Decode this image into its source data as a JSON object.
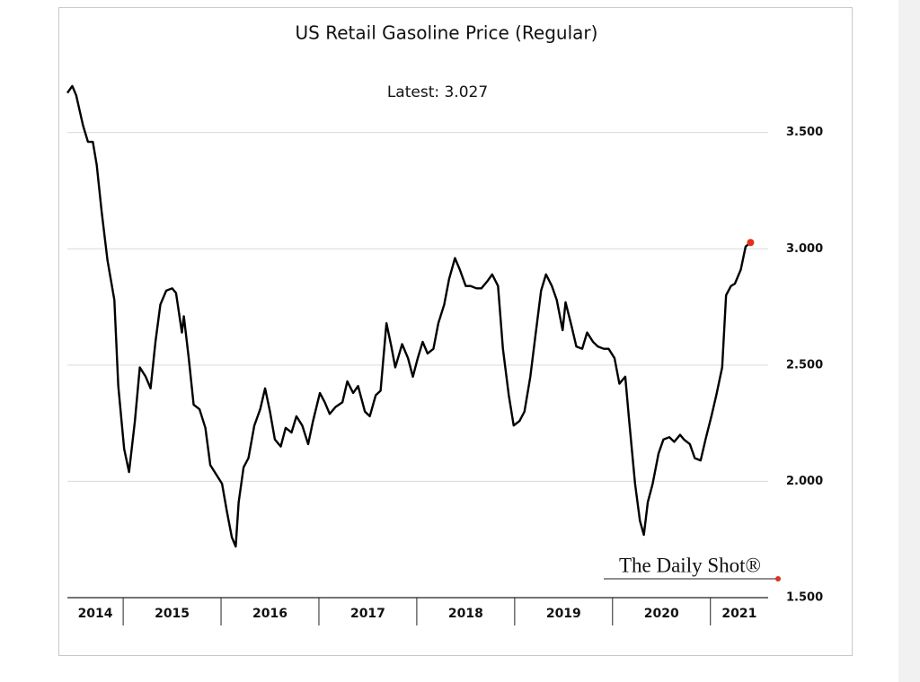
{
  "chart_data": {
    "type": "line",
    "title": "US Retail Gasoline Price (Regular)",
    "annotation": "Latest:  3.027",
    "watermark": "The Daily Shot®",
    "color": "#000000",
    "highlight_color": "#e03020",
    "grid": true,
    "xlim": [
      2014.43,
      2021.59
    ],
    "xticks": [
      2015,
      2016,
      2017,
      2018,
      2019,
      2020,
      2021
    ],
    "x_labels": [
      "2014",
      "2015",
      "2016",
      "2017",
      "2018",
      "2019",
      "2020",
      "2021"
    ],
    "ylim": [
      1.5,
      3.9
    ],
    "yticks": [
      {
        "value": 1.5,
        "label": "1.500"
      },
      {
        "value": 2,
        "label": "2.000"
      },
      {
        "value": 2.5,
        "label": "2.500"
      },
      {
        "value": 3,
        "label": "3.000"
      },
      {
        "value": 3.5,
        "label": "3.500"
      }
    ],
    "x": [
      2014.43,
      2014.48,
      2014.52,
      2014.59,
      2014.64,
      2014.69,
      2014.73,
      2014.78,
      2014.84,
      2014.91,
      2014.95,
      2015.01,
      2015.06,
      2015.12,
      2015.17,
      2015.23,
      2015.28,
      2015.33,
      2015.38,
      2015.44,
      2015.5,
      2015.54,
      2015.6,
      2015.62,
      2015.67,
      2015.72,
      2015.78,
      2015.84,
      2015.89,
      2015.95,
      2016.01,
      2016.06,
      2016.11,
      2016.15,
      2016.18,
      2016.23,
      2016.28,
      2016.34,
      2016.4,
      2016.45,
      2016.5,
      2016.55,
      2016.61,
      2016.66,
      2016.72,
      2016.77,
      2016.83,
      2016.89,
      2016.94,
      2017.01,
      2017.06,
      2017.11,
      2017.17,
      2017.24,
      2017.29,
      2017.35,
      2017.4,
      2017.47,
      2017.52,
      2017.58,
      2017.63,
      2017.69,
      2017.74,
      2017.78,
      2017.85,
      2017.91,
      2017.96,
      2018.01,
      2018.06,
      2018.11,
      2018.17,
      2018.22,
      2018.28,
      2018.33,
      2018.39,
      2018.44,
      2018.5,
      2018.55,
      2018.61,
      2018.66,
      2018.72,
      2018.77,
      2018.83,
      2018.88,
      2018.94,
      2018.99,
      2019.05,
      2019.1,
      2019.16,
      2019.21,
      2019.27,
      2019.32,
      2019.38,
      2019.43,
      2019.49,
      2019.52,
      2019.58,
      2019.63,
      2019.69,
      2019.74,
      2019.8,
      2019.85,
      2019.91,
      2019.96,
      2020.02,
      2020.07,
      2020.13,
      2020.17,
      2020.23,
      2020.28,
      2020.32,
      2020.36,
      2020.41,
      2020.47,
      2020.52,
      2020.58,
      2020.63,
      2020.69,
      2020.73,
      2020.79,
      2020.84,
      2020.9,
      2020.95,
      2021.01,
      2021.06,
      2021.12,
      2021.16,
      2021.21,
      2021.25,
      2021.31,
      2021.36,
      2021.41
    ],
    "values": [
      3.67,
      3.7,
      3.66,
      3.53,
      3.46,
      3.46,
      3.36,
      3.16,
      2.95,
      2.78,
      2.41,
      2.14,
      2.04,
      2.26,
      2.49,
      2.45,
      2.4,
      2.6,
      2.76,
      2.82,
      2.83,
      2.81,
      2.64,
      2.71,
      2.53,
      2.33,
      2.31,
      2.23,
      2.07,
      2.03,
      1.99,
      1.87,
      1.76,
      1.72,
      1.91,
      2.06,
      2.1,
      2.24,
      2.31,
      2.4,
      2.3,
      2.18,
      2.15,
      2.23,
      2.21,
      2.28,
      2.24,
      2.16,
      2.26,
      2.38,
      2.34,
      2.29,
      2.32,
      2.34,
      2.43,
      2.38,
      2.41,
      2.3,
      2.28,
      2.37,
      2.39,
      2.68,
      2.58,
      2.49,
      2.59,
      2.53,
      2.45,
      2.53,
      2.6,
      2.55,
      2.57,
      2.68,
      2.76,
      2.87,
      2.96,
      2.91,
      2.84,
      2.84,
      2.83,
      2.83,
      2.86,
      2.89,
      2.84,
      2.57,
      2.37,
      2.24,
      2.26,
      2.3,
      2.45,
      2.62,
      2.82,
      2.89,
      2.84,
      2.78,
      2.65,
      2.77,
      2.67,
      2.58,
      2.57,
      2.64,
      2.6,
      2.58,
      2.57,
      2.57,
      2.53,
      2.42,
      2.45,
      2.26,
      1.99,
      1.83,
      1.77,
      1.91,
      1.99,
      2.12,
      2.18,
      2.19,
      2.17,
      2.2,
      2.18,
      2.16,
      2.1,
      2.09,
      2.18,
      2.28,
      2.37,
      2.49,
      2.8,
      2.84,
      2.85,
      2.91,
      3.01,
      3.027
    ]
  }
}
